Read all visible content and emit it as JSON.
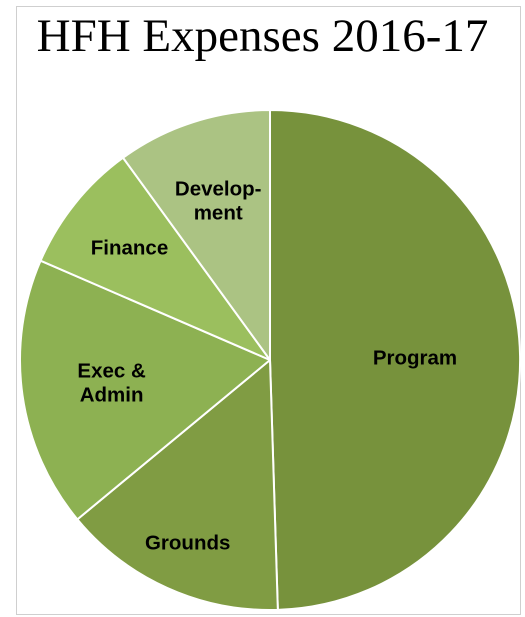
{
  "chart_data": {
    "type": "pie",
    "title": "HFH Expenses 2016-17",
    "categories": [
      "Program",
      "Grounds",
      "Exec & Admin",
      "Finance",
      "Development"
    ],
    "label_lines": [
      [
        "Program"
      ],
      [
        "Grounds"
      ],
      [
        "Exec &",
        "Admin"
      ],
      [
        "Finance"
      ],
      [
        "Develop-",
        "ment"
      ]
    ],
    "values": [
      49.5,
      14.5,
      17.5,
      8.5,
      10.0
    ],
    "colors": [
      "#77923c",
      "#809c43",
      "#8db152",
      "#9bbf5e",
      "#abc383"
    ],
    "start_angle_deg": 0,
    "direction": "clockwise",
    "legend": "none"
  }
}
